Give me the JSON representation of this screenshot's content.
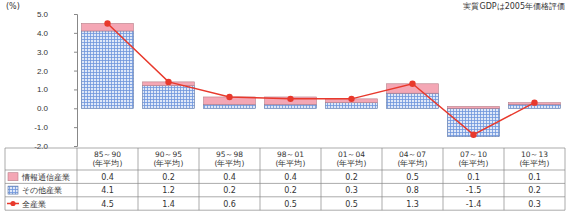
{
  "chart_data": {
    "type": "bar",
    "stacked": true,
    "data_labels": true,
    "grid": false,
    "y_label": "(%)",
    "annotations": [
      "実質GDPは2005年価格評価"
    ],
    "categories": [
      "85～90\n(年平均)",
      "90～95\n(年平均)",
      "95～98\n(年平均)",
      "98～01\n(年平均)",
      "01～04\n(年平均)",
      "04～07\n(年平均)",
      "07～10\n(年平均)",
      "10～13\n(年平均)"
    ],
    "series": [
      {
        "name": "情報通信産業",
        "type": "bar",
        "color": "#f4a7b5",
        "values": [
          0.4,
          0.2,
          0.4,
          0.4,
          0.2,
          0.5,
          0.1,
          0.1
        ]
      },
      {
        "name": "その他産業",
        "type": "bar",
        "color": "#6f95dc",
        "values": [
          4.1,
          1.2,
          0.2,
          0.2,
          0.3,
          0.8,
          -1.5,
          0.2
        ]
      },
      {
        "name": "全産業",
        "type": "line",
        "color": "#e8392c",
        "marker": "circle",
        "values": [
          4.5,
          1.4,
          0.6,
          0.5,
          0.5,
          1.3,
          -1.4,
          0.3
        ]
      }
    ],
    "ylim": [
      -2,
      5
    ],
    "yticks": [
      {
        "value": -2,
        "label": "-2.0"
      },
      {
        "value": -1,
        "label": "-1.0"
      },
      {
        "value": 0,
        "label": "0.0"
      },
      {
        "value": 1,
        "label": "1.0"
      },
      {
        "value": 2,
        "label": "2.0"
      },
      {
        "value": 3,
        "label": "3.0"
      },
      {
        "value": 4,
        "label": "4.0"
      },
      {
        "value": 5,
        "label": "5.0"
      }
    ]
  }
}
